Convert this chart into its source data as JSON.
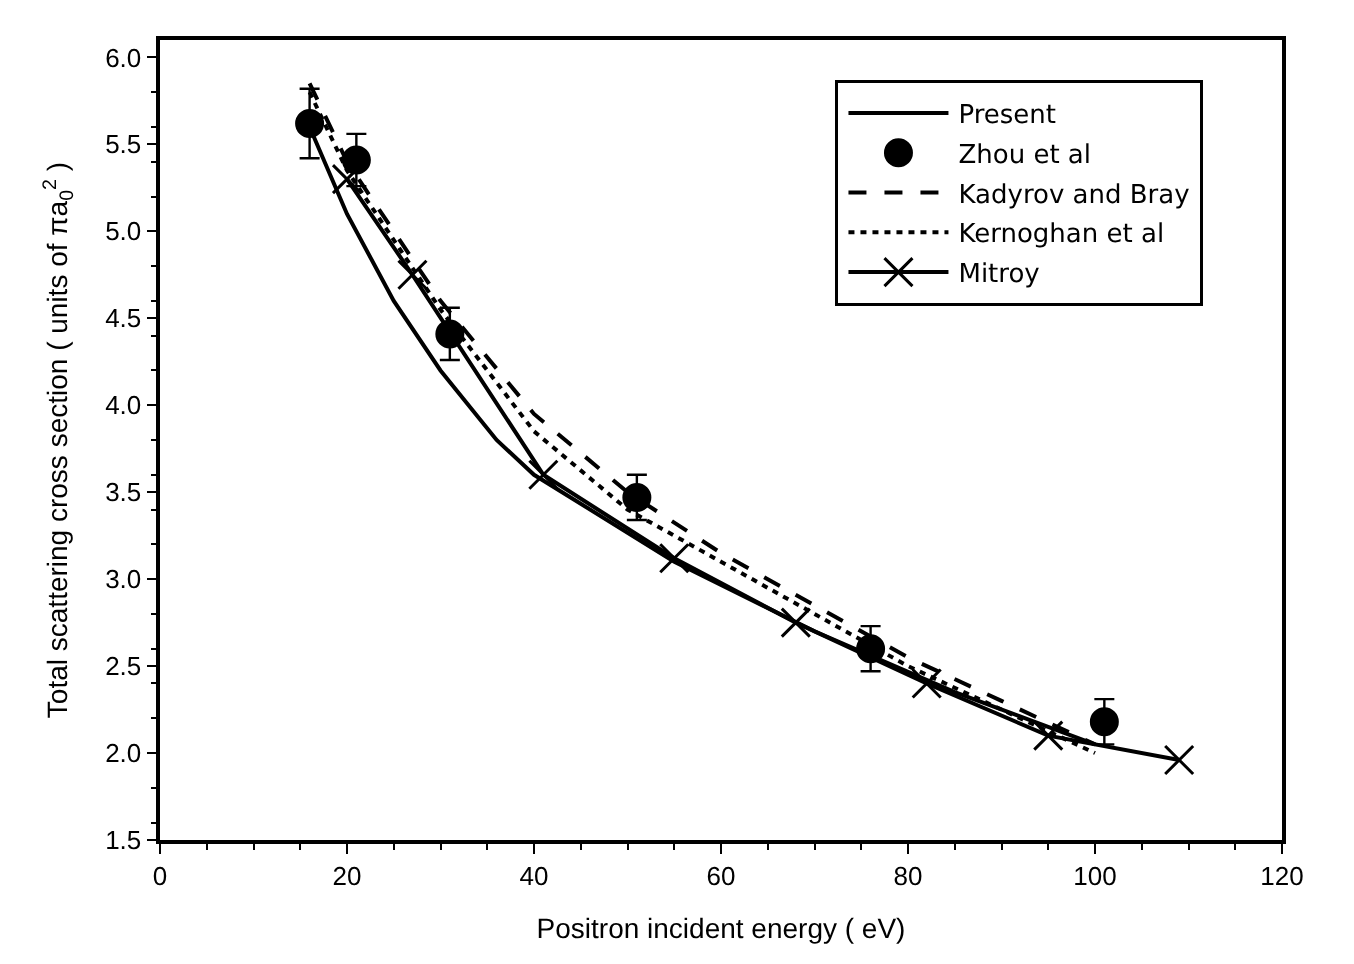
{
  "chart_data": {
    "type": "line",
    "xlabel": "Positron incident energy ( eV)",
    "ylabel": "Total scattering cross section ( units of πa$_{0}$$^{2}$ )",
    "xlim": [
      0,
      120
    ],
    "xticks": [
      0,
      20,
      40,
      60,
      80,
      100,
      120
    ],
    "ylim": [
      1.5,
      6.1
    ],
    "yticks": [
      1.5,
      {
        "value": 2,
        "label": "2.0"
      },
      2.5,
      {
        "value": 3,
        "label": "3.0"
      },
      3.5,
      {
        "value": 4,
        "label": "4.0"
      },
      4.5,
      {
        "value": 5,
        "label": "5.0"
      },
      5.5,
      {
        "value": 6,
        "label": "6.0"
      }
    ],
    "legend": "top right",
    "series": [
      {
        "name": "Present",
        "color": "#000000",
        "line_style": "solid",
        "marker": "none",
        "x": [
          16,
          20,
          25,
          30,
          36,
          40,
          55,
          70,
          85,
          100
        ],
        "values": [
          5.6,
          5.1,
          4.6,
          4.2,
          3.8,
          3.6,
          3.1,
          2.7,
          2.35,
          2.05
        ]
      },
      {
        "name": "Zhou et al",
        "type": "scatter",
        "color": "#000000",
        "marker": "circle",
        "x": [
          16,
          21,
          31,
          51,
          76,
          101
        ],
        "values": [
          5.62,
          5.41,
          4.41,
          3.47,
          2.6,
          2.18
        ],
        "errors": [
          0.2,
          0.15,
          0.15,
          0.13,
          0.13,
          0.13
        ]
      },
      {
        "name": "Kadyrov and Bray",
        "color": "#000000",
        "line_style": "dashed",
        "marker": "none",
        "x": [
          16,
          20,
          30,
          40,
          50,
          60,
          70,
          80,
          90,
          100
        ],
        "values": [
          5.85,
          5.4,
          4.6,
          3.95,
          3.5,
          3.15,
          2.85,
          2.55,
          2.3,
          2.05
        ]
      },
      {
        "name": "Kernoghan et al",
        "color": "#000000",
        "line_style": "dotted",
        "marker": "none",
        "x": [
          16,
          20,
          30,
          40,
          50,
          60,
          70,
          80,
          90,
          100
        ],
        "values": [
          5.8,
          5.35,
          4.55,
          3.85,
          3.4,
          3.1,
          2.8,
          2.5,
          2.25,
          2.0
        ]
      },
      {
        "name": "Mitroy",
        "color": "#000000",
        "line_style": "solid",
        "marker": "cross",
        "x": [
          20,
          27,
          41,
          55,
          68,
          82,
          95,
          109
        ],
        "values": [
          5.3,
          4.75,
          3.6,
          3.12,
          2.75,
          2.4,
          2.1,
          1.96
        ]
      }
    ]
  }
}
